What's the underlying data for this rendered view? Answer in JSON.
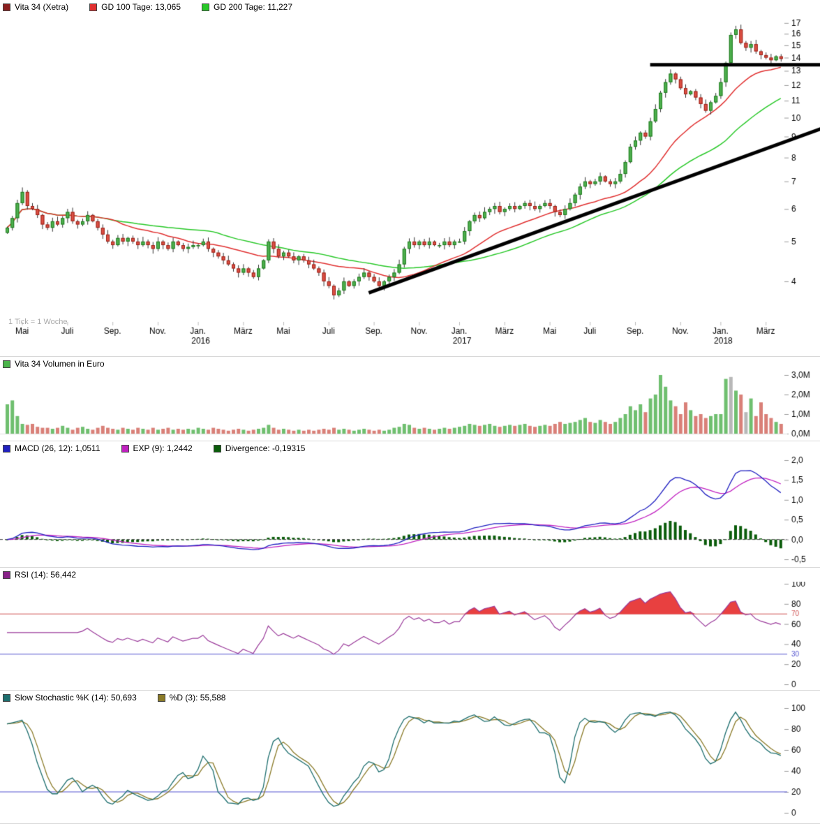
{
  "footnote": "1 Tick = 1 Woche",
  "legends": {
    "price": [
      {
        "label": "Vita 34 (Xetra)",
        "color": "#8b1f1f"
      },
      {
        "label": "GD 100 Tage: 13,065",
        "color": "#e03030"
      },
      {
        "label": "GD 200 Tage: 11,227",
        "color": "#28c828"
      }
    ],
    "volume": [
      {
        "label": "Vita 34 Volumen in Euro",
        "color": "#4ab44a"
      }
    ],
    "macd": [
      {
        "label": "MACD (26, 12): 1,0511",
        "color": "#2020c0"
      },
      {
        "label": "EXP (9): 1,2442",
        "color": "#c020c0"
      },
      {
        "label": "Divergence: -0,19315",
        "color": "#0a5c0a"
      }
    ],
    "rsi": [
      {
        "label": "RSI (14): 56,442",
        "color": "#882288"
      }
    ],
    "stoch": [
      {
        "label": "Slow Stochastic %K (14): 50,693",
        "color": "#1d6e6e"
      },
      {
        "label": "%D (3): 55,588",
        "color": "#8a7a28"
      }
    ]
  },
  "chart_data": [
    {
      "type": "candlestick",
      "title": "Vita 34 (Xetra)",
      "timeframe": "1 week per tick",
      "yscale": "log",
      "ylim": [
        3.2,
        17.6
      ],
      "yticks": [
        17,
        16,
        15,
        14,
        13,
        12,
        11,
        10,
        9,
        8,
        7,
        6,
        5,
        4
      ],
      "xticks": [
        {
          "week": 3,
          "label": "Mai"
        },
        {
          "week": 12,
          "label": "Juli"
        },
        {
          "week": 21,
          "label": "Sep."
        },
        {
          "week": 30,
          "label": "Nov."
        },
        {
          "week": 38,
          "label": "Jan.",
          "year": "2016"
        },
        {
          "week": 47,
          "label": "März"
        },
        {
          "week": 55,
          "label": "Mai"
        },
        {
          "week": 64,
          "label": "Juli"
        },
        {
          "week": 73,
          "label": "Sep."
        },
        {
          "week": 82,
          "label": "Nov."
        },
        {
          "week": 90,
          "label": "Jan.",
          "year": "2017"
        },
        {
          "week": 99,
          "label": "März"
        },
        {
          "week": 108,
          "label": "Mai"
        },
        {
          "week": 116,
          "label": "Juli"
        },
        {
          "week": 125,
          "label": "Sep."
        },
        {
          "week": 134,
          "label": "Nov."
        },
        {
          "week": 142,
          "label": "Jan.",
          "year": "2018"
        },
        {
          "week": 151,
          "label": "März"
        }
      ],
      "closes": [
        5.4,
        5.7,
        6.2,
        6.6,
        6.1,
        6.0,
        5.8,
        5.5,
        5.4,
        5.6,
        5.5,
        5.7,
        5.9,
        5.6,
        5.5,
        5.6,
        5.8,
        5.6,
        5.4,
        5.2,
        5.0,
        4.9,
        5.1,
        5.0,
        5.1,
        5.0,
        4.9,
        5.0,
        4.9,
        4.8,
        5.0,
        4.9,
        4.8,
        5.0,
        4.9,
        4.8,
        4.85,
        4.9,
        4.9,
        5.0,
        4.8,
        4.7,
        4.6,
        4.5,
        4.4,
        4.3,
        4.2,
        4.3,
        4.2,
        4.1,
        4.3,
        4.5,
        5.0,
        4.8,
        4.6,
        4.7,
        4.6,
        4.5,
        4.6,
        4.5,
        4.4,
        4.3,
        4.2,
        4.0,
        3.9,
        3.7,
        3.8,
        4.0,
        3.9,
        4.0,
        4.1,
        4.2,
        4.1,
        4.0,
        3.9,
        4.0,
        4.1,
        4.2,
        4.4,
        4.8,
        5.0,
        4.9,
        5.0,
        4.9,
        5.0,
        4.9,
        4.9,
        5.0,
        4.9,
        5.0,
        5.0,
        5.3,
        5.6,
        5.8,
        5.7,
        5.9,
        6.0,
        6.1,
        5.9,
        6.0,
        6.1,
        6.0,
        6.1,
        6.2,
        6.1,
        6.0,
        6.1,
        6.2,
        6.1,
        5.9,
        5.8,
        6.0,
        6.2,
        6.5,
        6.8,
        7.0,
        6.9,
        7.0,
        7.2,
        7.0,
        6.9,
        7.0,
        7.3,
        7.8,
        8.5,
        8.8,
        9.2,
        9.0,
        9.8,
        10.5,
        11.5,
        12.2,
        12.8,
        12.4,
        11.8,
        11.4,
        11.6,
        11.2,
        10.8,
        10.4,
        10.9,
        11.3,
        12.2,
        13.6,
        15.9,
        16.4,
        15.2,
        14.8,
        15.1,
        14.5,
        14.2,
        14.0,
        13.8,
        14.1,
        13.9
      ],
      "overlays": [
        {
          "name": "GD 100 Tage",
          "value_label": "13,065",
          "period_weeks": 20,
          "color": "#e03030"
        },
        {
          "name": "GD 200 Tage",
          "value_label": "11,227",
          "period_weeks": 40,
          "color": "#28c828"
        }
      ],
      "trendlines": [
        {
          "kind": "support-ascending",
          "week1": 72,
          "price1": 3.75,
          "week2": 162,
          "price2": 9.4,
          "width": 5,
          "color": "#000000"
        },
        {
          "kind": "resistance-horizontal",
          "week1": 128,
          "price1": 13.45,
          "week2": 162,
          "price2": 13.45,
          "width": 5,
          "color": "#000000"
        }
      ]
    },
    {
      "type": "bar",
      "title": "Vita 34 Volumen in Euro",
      "ylim": [
        0,
        3
      ],
      "yticks": [
        {
          "label": "3,0M",
          "v": 3
        },
        {
          "label": "2,0M",
          "v": 2
        },
        {
          "label": "1,0M",
          "v": 1
        },
        {
          "label": "0,0M",
          "v": 0
        }
      ],
      "values": [
        1.5,
        1.7,
        0.9,
        0.5,
        0.45,
        0.5,
        0.35,
        0.3,
        0.3,
        0.25,
        0.3,
        0.4,
        0.3,
        0.2,
        0.3,
        0.35,
        0.25,
        0.2,
        0.3,
        0.4,
        0.3,
        0.25,
        0.2,
        0.3,
        0.25,
        0.2,
        0.3,
        0.25,
        0.2,
        0.3,
        0.2,
        0.25,
        0.3,
        0.2,
        0.25,
        0.2,
        0.25,
        0.2,
        0.3,
        0.25,
        0.2,
        0.3,
        0.25,
        0.2,
        0.15,
        0.2,
        0.25,
        0.2,
        0.15,
        0.2,
        0.25,
        0.3,
        0.45,
        0.3,
        0.2,
        0.25,
        0.2,
        0.15,
        0.2,
        0.15,
        0.2,
        0.15,
        0.2,
        0.25,
        0.2,
        0.3,
        0.2,
        0.25,
        0.2,
        0.15,
        0.2,
        0.25,
        0.2,
        0.15,
        0.2,
        0.15,
        0.2,
        0.3,
        0.35,
        0.5,
        0.45,
        0.3,
        0.25,
        0.3,
        0.25,
        0.2,
        0.25,
        0.3,
        0.25,
        0.3,
        0.35,
        0.4,
        0.5,
        0.45,
        0.4,
        0.45,
        0.5,
        0.4,
        0.35,
        0.4,
        0.45,
        0.4,
        0.45,
        0.5,
        0.4,
        0.35,
        0.4,
        0.45,
        0.4,
        0.5,
        0.6,
        0.5,
        0.55,
        0.6,
        0.7,
        0.8,
        0.6,
        0.55,
        0.7,
        0.6,
        0.5,
        0.6,
        0.8,
        1.0,
        1.4,
        1.2,
        1.5,
        1.1,
        1.8,
        2.0,
        3.0,
        2.4,
        1.7,
        1.4,
        1.0,
        1.6,
        1.2,
        0.9,
        1.0,
        0.8,
        0.9,
        1.0,
        1.0,
        2.8,
        2.9,
        2.2,
        2.0,
        1.1,
        1.8,
        0.9,
        1.6,
        1.0,
        0.8,
        0.6,
        0.5
      ],
      "gray_indices": [
        144,
        147
      ],
      "colors": {
        "up": "#6fbf6f",
        "down": "#d98078",
        "neutral": "#b8b8b8"
      }
    },
    {
      "type": "line",
      "title": "MACD",
      "params": "(26, 12)",
      "macd_value": "1,0511",
      "signal_name": "EXP (9)",
      "signal_value": "1,2442",
      "divergence_value": "-0,19315",
      "derived_from_closes": {
        "fast": 12,
        "slow": 26,
        "signal": 9
      },
      "ylim": [
        -0.5,
        2.0
      ],
      "yticks": [
        {
          "label": "2,0",
          "v": 2.0
        },
        {
          "label": "1,5",
          "v": 1.5
        },
        {
          "label": "1,0",
          "v": 1.0
        },
        {
          "label": "0,5",
          "v": 0.5
        },
        {
          "label": "0,0",
          "v": 0.0
        },
        {
          "label": "-0,5",
          "v": -0.5
        }
      ],
      "colors": {
        "macd": "#2020c0",
        "signal": "#c020c0",
        "histogram": "#0a5c0a",
        "zero_dash": "#444444"
      }
    },
    {
      "type": "line",
      "title": "RSI",
      "params": "(14)",
      "value": "56,442",
      "derived_from_closes": {
        "period": 14
      },
      "ylim": [
        0,
        100
      ],
      "yticks": [
        {
          "label": "100",
          "v": 100
        },
        {
          "label": "80",
          "v": 80
        },
        {
          "label": "60",
          "v": 60
        },
        {
          "label": "40",
          "v": 40
        },
        {
          "label": "20",
          "v": 20
        },
        {
          "label": "0",
          "v": 0
        }
      ],
      "hlines": [
        {
          "v": 70,
          "color": "#d05555",
          "label": "70"
        },
        {
          "v": 30,
          "color": "#5555d0",
          "label": "30"
        }
      ],
      "colors": {
        "line": "#9a3a9a",
        "overbought_fill": "#e84040"
      }
    },
    {
      "type": "line",
      "title": "Slow Stochastic",
      "k_label": "%K (14)",
      "k_value": "50,693",
      "d_label": "%D (3)",
      "d_value": "55,588",
      "derived_from_closes": {
        "k_period": 14,
        "smooth": 3,
        "d_period": 3
      },
      "ylim": [
        0,
        100
      ],
      "yticks": [
        {
          "label": "100",
          "v": 100
        },
        {
          "label": "80",
          "v": 80
        },
        {
          "label": "60",
          "v": 60
        },
        {
          "label": "40",
          "v": 40
        },
        {
          "label": "20",
          "v": 20
        },
        {
          "label": "0",
          "v": 0
        }
      ],
      "hlines": [
        {
          "v": 20,
          "color": "#5050d0"
        }
      ],
      "colors": {
        "k": "#1d6e6e",
        "d": "#8a7a28"
      }
    }
  ]
}
